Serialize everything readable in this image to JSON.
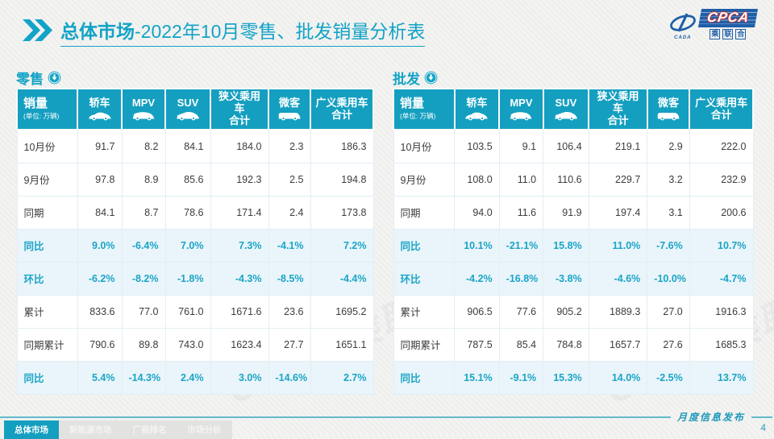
{
  "header": {
    "title_bold": "总体市场",
    "title_rest": "-2022年10月零售、批发销量分析表",
    "logo": {
      "main": "CPCA",
      "sub": "乘联合",
      "swoosh": "CADA"
    }
  },
  "table_columns": {
    "sales_header": "销量",
    "sales_unit": "(单位: 万辆)",
    "cols": [
      {
        "label": "轿车",
        "label2": "",
        "icon": "sedan-icon"
      },
      {
        "label": "MPV",
        "label2": "",
        "icon": "mpv-icon"
      },
      {
        "label": "SUV",
        "label2": "",
        "icon": "suv-icon"
      },
      {
        "label": "狭义乘用车",
        "label2": "合计",
        "icon": ""
      },
      {
        "label": "微客",
        "label2": "",
        "icon": "van-icon"
      },
      {
        "label": "广义乘用车",
        "label2": "合计",
        "icon": ""
      }
    ]
  },
  "tables": [
    {
      "title": "零售",
      "rows": [
        {
          "label": "10月份",
          "values": [
            "91.7",
            "8.2",
            "84.1",
            "184.0",
            "2.3",
            "186.3"
          ],
          "highlight": false
        },
        {
          "label": "9月份",
          "values": [
            "97.8",
            "8.9",
            "85.6",
            "192.3",
            "2.5",
            "194.8"
          ],
          "highlight": false
        },
        {
          "label": "同期",
          "values": [
            "84.1",
            "8.7",
            "78.6",
            "171.4",
            "2.4",
            "173.8"
          ],
          "highlight": false
        },
        {
          "label": "同比",
          "values": [
            "9.0%",
            "-6.4%",
            "7.0%",
            "7.3%",
            "-4.1%",
            "7.2%"
          ],
          "highlight": true
        },
        {
          "label": "环比",
          "values": [
            "-6.2%",
            "-8.2%",
            "-1.8%",
            "-4.3%",
            "-8.5%",
            "-4.4%"
          ],
          "highlight": true
        },
        {
          "label": "累计",
          "values": [
            "833.6",
            "77.0",
            "761.0",
            "1671.6",
            "23.6",
            "1695.2"
          ],
          "highlight": false
        },
        {
          "label": "同期累计",
          "values": [
            "790.6",
            "89.8",
            "743.0",
            "1623.4",
            "27.7",
            "1651.1"
          ],
          "highlight": false
        },
        {
          "label": "同比",
          "values": [
            "5.4%",
            "-14.3%",
            "2.4%",
            "3.0%",
            "-14.6%",
            "2.7%"
          ],
          "highlight": true
        }
      ]
    },
    {
      "title": "批发",
      "rows": [
        {
          "label": "10月份",
          "values": [
            "103.5",
            "9.1",
            "106.4",
            "219.1",
            "2.9",
            "222.0"
          ],
          "highlight": false
        },
        {
          "label": "9月份",
          "values": [
            "108.0",
            "11.0",
            "110.6",
            "229.7",
            "3.2",
            "232.9"
          ],
          "highlight": false
        },
        {
          "label": "同期",
          "values": [
            "94.0",
            "11.6",
            "91.9",
            "197.4",
            "3.1",
            "200.6"
          ],
          "highlight": false
        },
        {
          "label": "同比",
          "values": [
            "10.1%",
            "-21.1%",
            "15.8%",
            "11.0%",
            "-7.6%",
            "10.7%"
          ],
          "highlight": true
        },
        {
          "label": "环比",
          "values": [
            "-4.2%",
            "-16.8%",
            "-3.8%",
            "-4.6%",
            "-10.0%",
            "-4.7%"
          ],
          "highlight": true
        },
        {
          "label": "累计",
          "values": [
            "906.5",
            "77.6",
            "905.2",
            "1889.3",
            "27.0",
            "1916.3"
          ],
          "highlight": false
        },
        {
          "label": "同期累计",
          "values": [
            "787.5",
            "85.4",
            "784.8",
            "1657.7",
            "27.6",
            "1685.3"
          ],
          "highlight": false
        },
        {
          "label": "同比",
          "values": [
            "15.1%",
            "-9.1%",
            "15.3%",
            "14.0%",
            "-2.5%",
            "13.7%"
          ],
          "highlight": true
        }
      ]
    }
  ],
  "footer": {
    "tabs": [
      {
        "label": "总体市场",
        "active": true
      },
      {
        "label": "新能源市场",
        "active": false
      },
      {
        "label": "厂商排名",
        "active": false
      },
      {
        "label": "市场分析",
        "active": false
      }
    ],
    "release_label": "月度信息发布",
    "page_number": "4"
  },
  "watermark": "CPCA 乘联会",
  "colors": {
    "accent": "#149fc0",
    "highlight_bg": "#e9f5fa",
    "logo_blue": "#1e5fa8"
  }
}
